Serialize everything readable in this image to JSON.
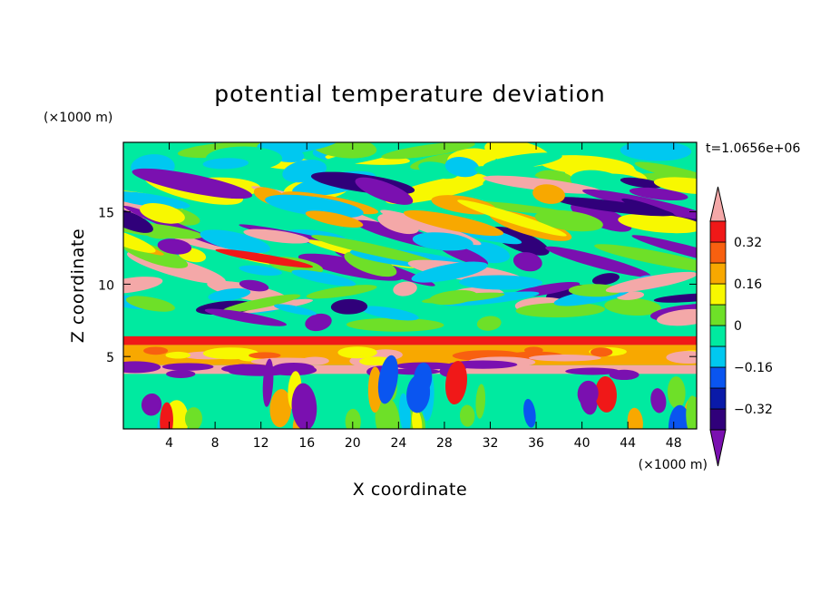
{
  "chart_data": {
    "type": "heatmap",
    "title": "potential temperature deviation",
    "xlabel": "X coordinate",
    "ylabel": "Z coordinate",
    "x_units": "(×1000 m)",
    "y_units": "(×1000 m)",
    "time_label": "t=1.0656e+06",
    "xlim": [
      0,
      50
    ],
    "ylim": [
      0,
      19.8
    ],
    "x_ticks": [
      4,
      8,
      12,
      16,
      20,
      24,
      28,
      32,
      36,
      40,
      44,
      48
    ],
    "x_tick_labels": [
      "4",
      "8",
      "12",
      "16",
      "20",
      "24",
      "28",
      "32",
      "36",
      "40",
      "44",
      "48"
    ],
    "y_ticks": [
      5,
      10,
      15
    ],
    "y_tick_labels": [
      "5",
      "10",
      "15"
    ],
    "colorbar": {
      "levels": [
        -0.4,
        -0.32,
        -0.24,
        -0.16,
        -0.08,
        0,
        0.08,
        0.16,
        0.24,
        0.32,
        0.4
      ],
      "labels": [
        {
          "value": 0.32,
          "text": "0.32"
        },
        {
          "value": 0.16,
          "text": "0.16"
        },
        {
          "value": 0,
          "text": "0"
        },
        {
          "value": -0.16,
          "text": "−0.16"
        },
        {
          "value": -0.32,
          "text": "−0.32"
        }
      ],
      "colors": [
        "#7a10b0",
        "#30007a",
        "#0a1aa8",
        "#0a55f0",
        "#00c8f0",
        "#00eaa0",
        "#6ee028",
        "#f8f800",
        "#f8a800",
        "#f86010",
        "#f01818",
        "#f4a8a8"
      ],
      "extend": "both"
    }
  }
}
